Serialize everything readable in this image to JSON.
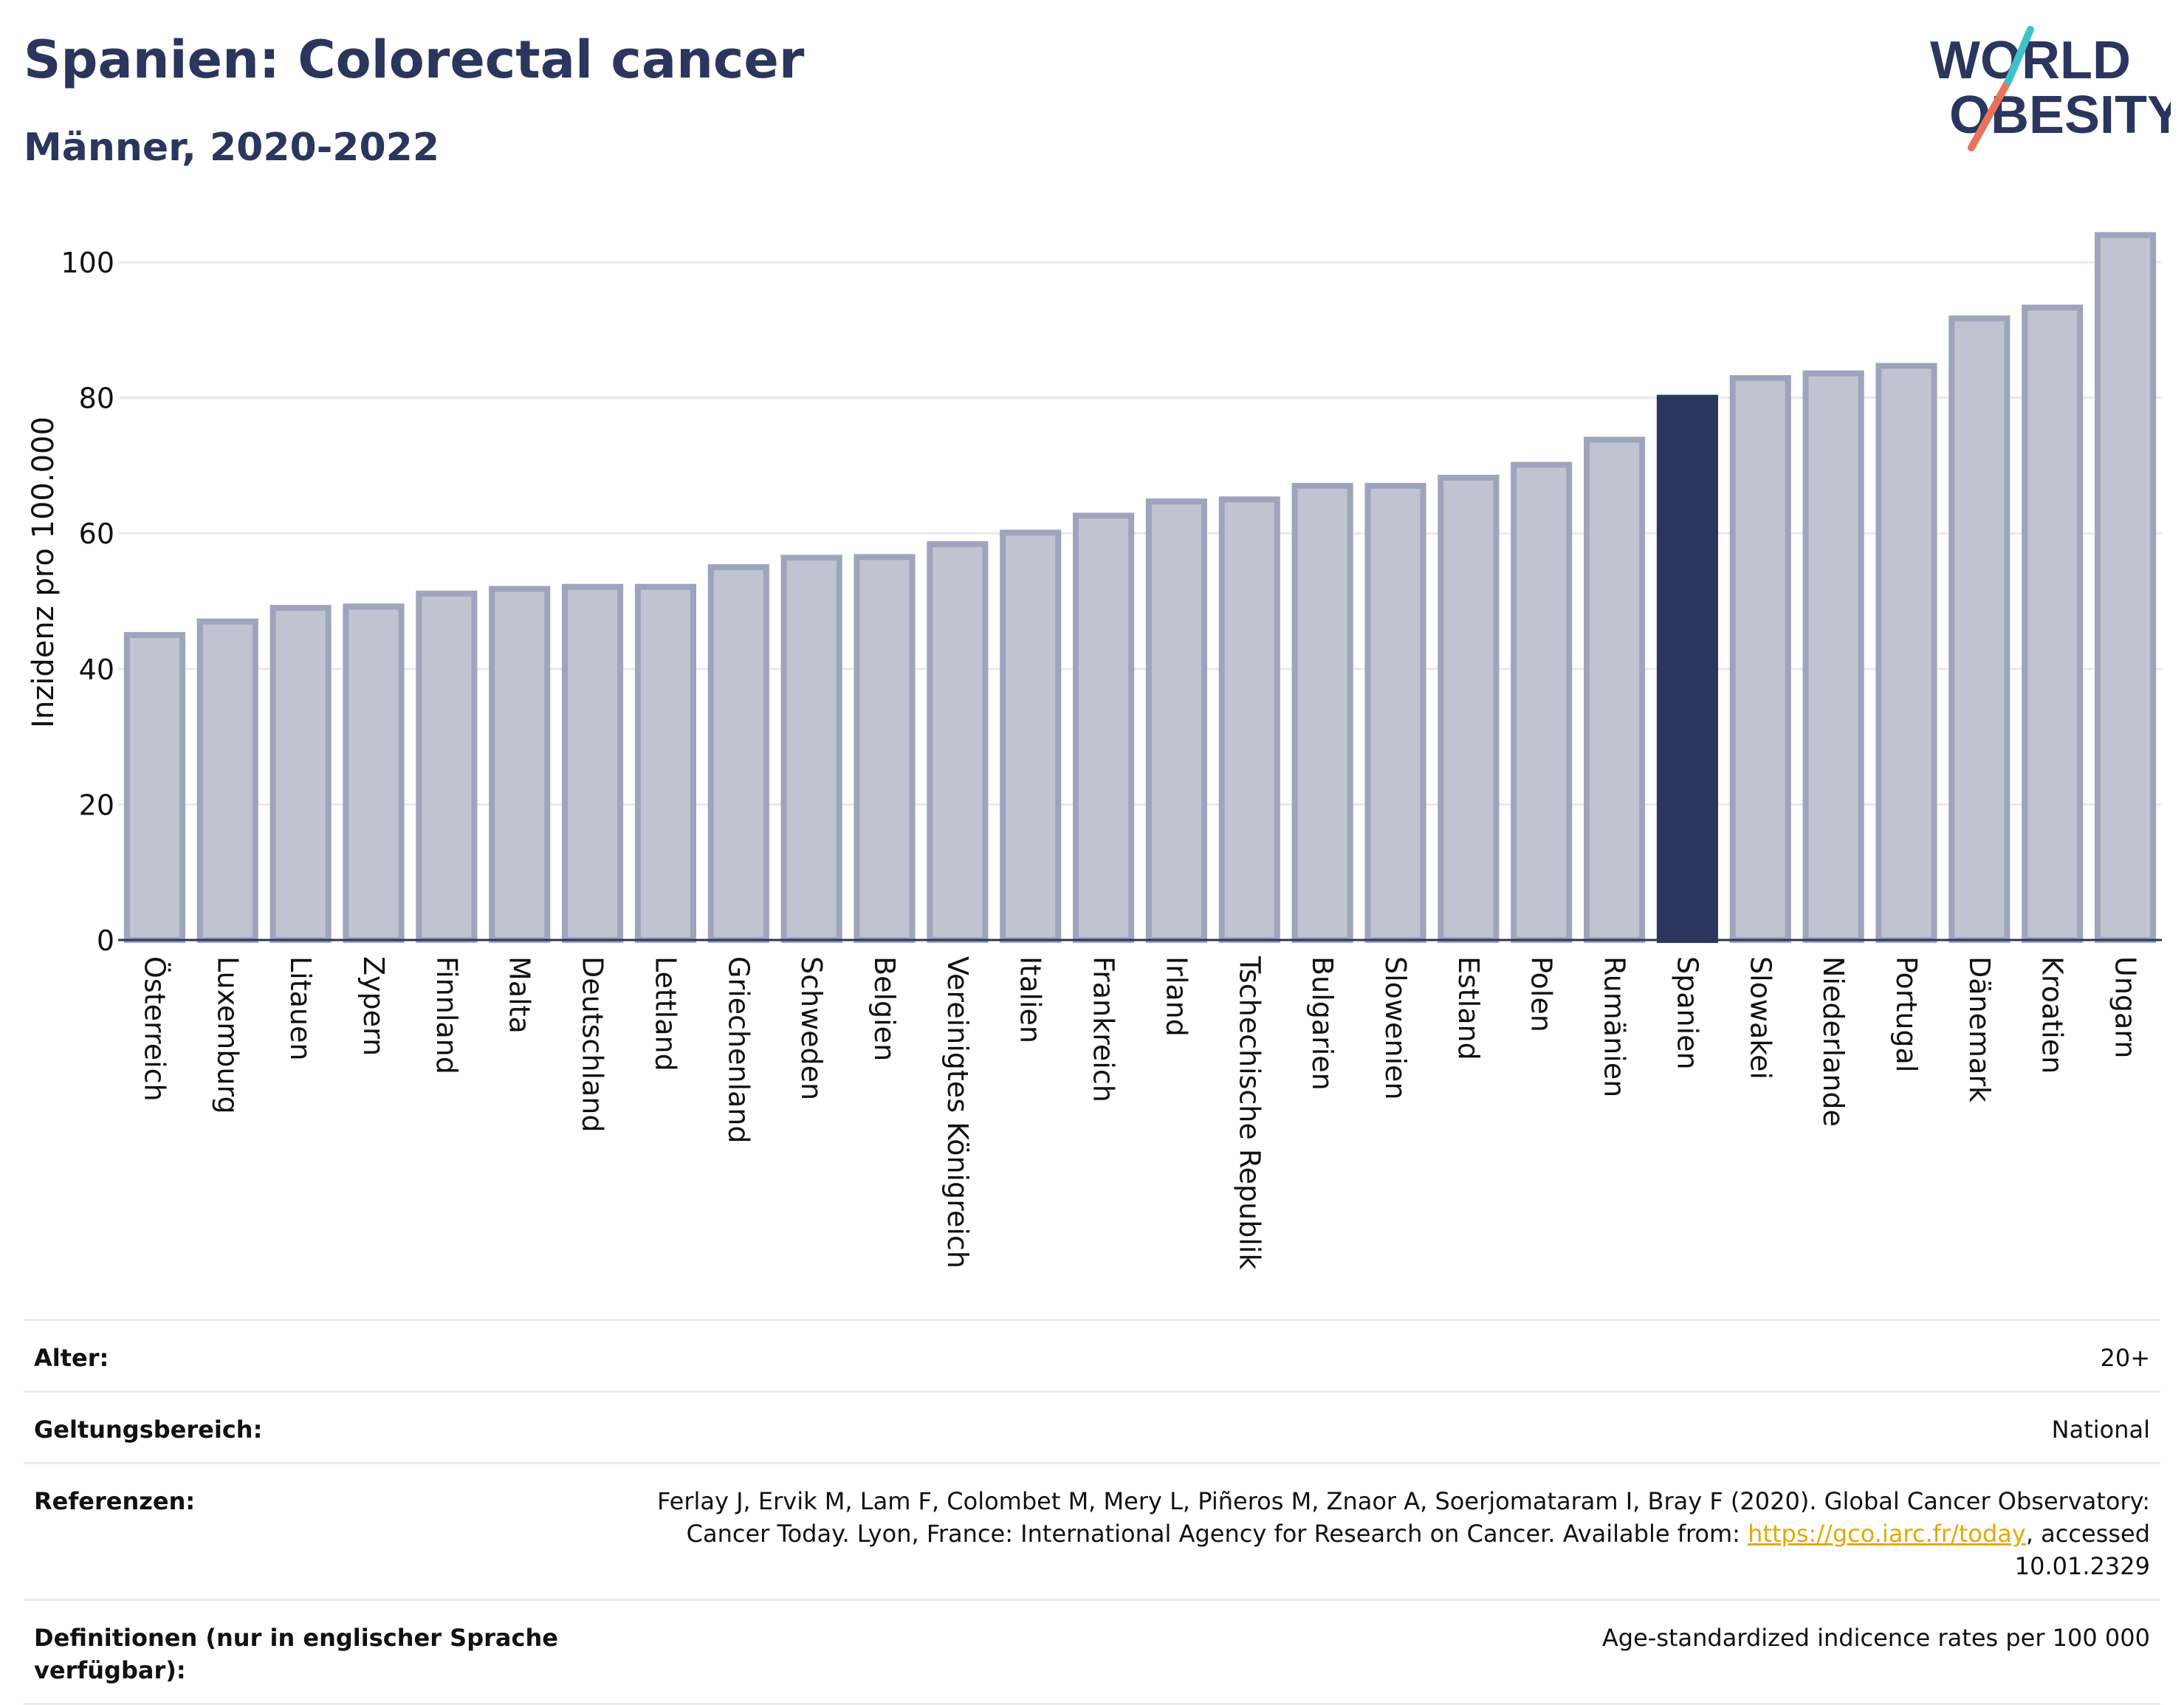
{
  "title": "Spanien: Colorectal cancer",
  "subtitle": "Männer, 2020-2022",
  "logo": {
    "line1": "WORLD",
    "line2": "OBESITY",
    "accent_color": "#e8735a",
    "accent_color2": "#3ec1c9",
    "text_color": "#2b365e"
  },
  "colors": {
    "highlight": "#2b365e",
    "bar_fill": "#c0c4d1",
    "bar_stroke": "#9ea4bb",
    "grid": "#e6eaf0"
  },
  "chart_data": {
    "type": "bar",
    "title": "Spanien: Colorectal cancer",
    "subtitle": "Männer, 2020-2022",
    "ylabel": "Inzidenz pro 100.000",
    "xlabel": "",
    "ylim": [
      0,
      106
    ],
    "yticks": [
      0,
      20,
      40,
      60,
      80,
      100
    ],
    "grid": true,
    "highlight": "Spanien",
    "categories": [
      "Österreich",
      "Luxemburg",
      "Litauen",
      "Zypern",
      "Finnland",
      "Malta",
      "Deutschland",
      "Lettland",
      "Griechenland",
      "Schweden",
      "Belgien",
      "Vereinigtes Königreich",
      "Italien",
      "Frankreich",
      "Irland",
      "Tschechische Republik",
      "Bulgarien",
      "Slowenien",
      "Estland",
      "Polen",
      "Rumänien",
      "Spanien",
      "Slowakei",
      "Niederlande",
      "Portugal",
      "Dänemark",
      "Kroatien",
      "Ungarn"
    ],
    "values": [
      45.0,
      47.0,
      49.0,
      49.2,
      51.1,
      51.8,
      52.1,
      52.1,
      55.0,
      56.4,
      56.5,
      58.4,
      60.1,
      62.6,
      64.7,
      65.0,
      67.0,
      67.0,
      68.2,
      70.1,
      73.8,
      80.0,
      82.9,
      83.6,
      84.7,
      91.7,
      93.3,
      104.0
    ]
  },
  "meta": {
    "age_label": "Alter:",
    "age_value": "20+",
    "scope_label": "Geltungsbereich:",
    "scope_value": "National",
    "refs_label": "Referenzen:",
    "refs_text": "Ferlay J, Ervik M, Lam F, Colombet M, Mery L, Piñeros M, Znaor A, Soerjomataram I, Bray F (2020). Global Cancer Observatory: Cancer Today. Lyon, France: International Agency for Research on Cancer. Available from: ",
    "refs_link": "https://gco.iarc.fr/today",
    "refs_suffix": ", accessed 10.01.2329",
    "defs_label": "Definitionen (nur in englischer Sprache verfügbar):",
    "defs_value": "Age-standardized indicence rates per 100 000"
  }
}
